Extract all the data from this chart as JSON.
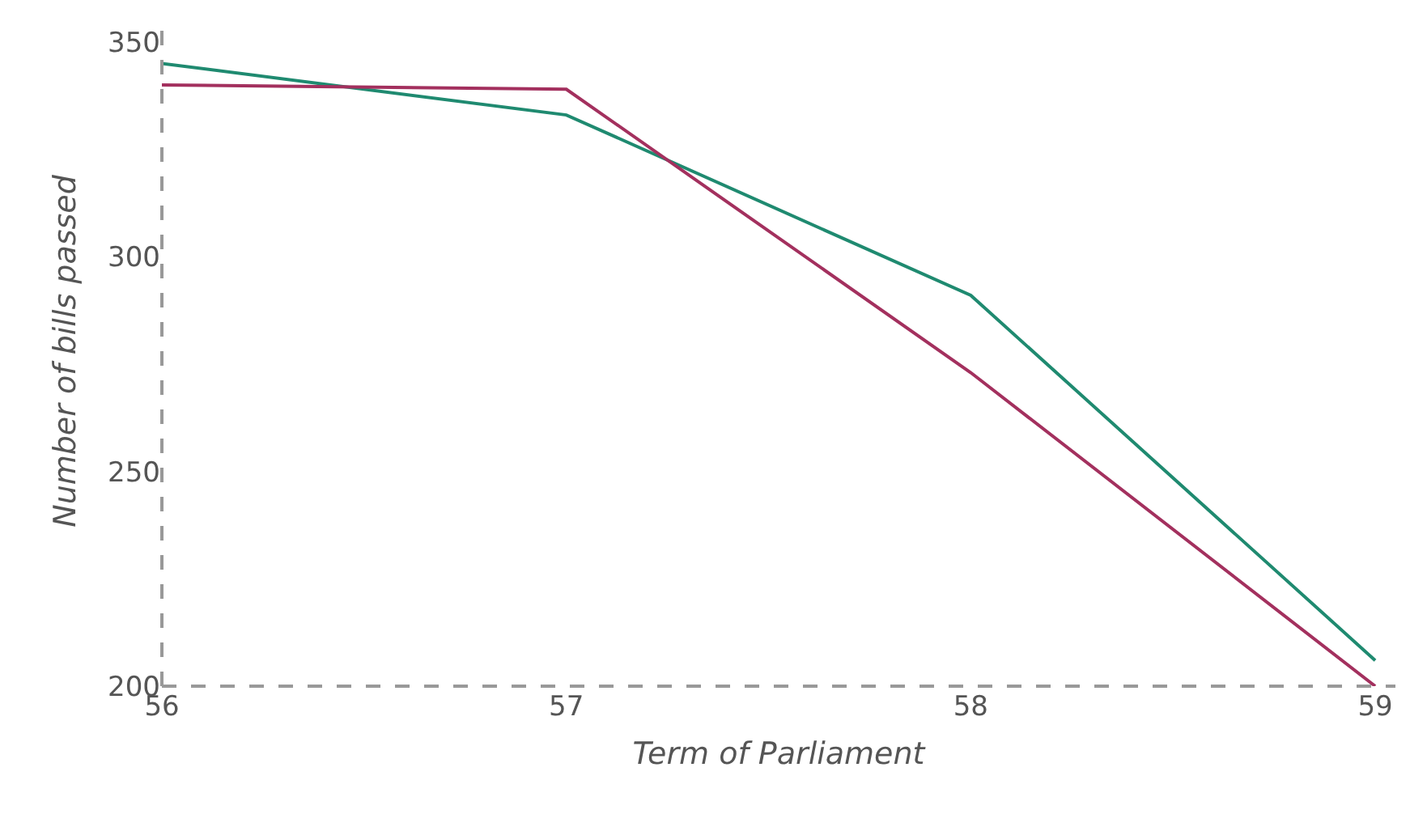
{
  "chart_data": {
    "type": "line",
    "xlabel": "Term of Parliament",
    "ylabel": "Number of bills passed",
    "x": [
      56,
      57,
      58,
      59
    ],
    "series": [
      {
        "color": "#1f8a70",
        "values": [
          345,
          333,
          291,
          206
        ]
      },
      {
        "color": "#a3305e",
        "values": [
          340,
          339,
          273,
          200
        ]
      }
    ],
    "xlim": [
      56,
      59.05
    ],
    "ylim": [
      200,
      356
    ],
    "xticks": [
      56,
      57,
      58,
      59
    ],
    "yticks": [
      200,
      250,
      300,
      350
    ],
    "grid": false,
    "marker": "none",
    "line_style": "solid"
  }
}
